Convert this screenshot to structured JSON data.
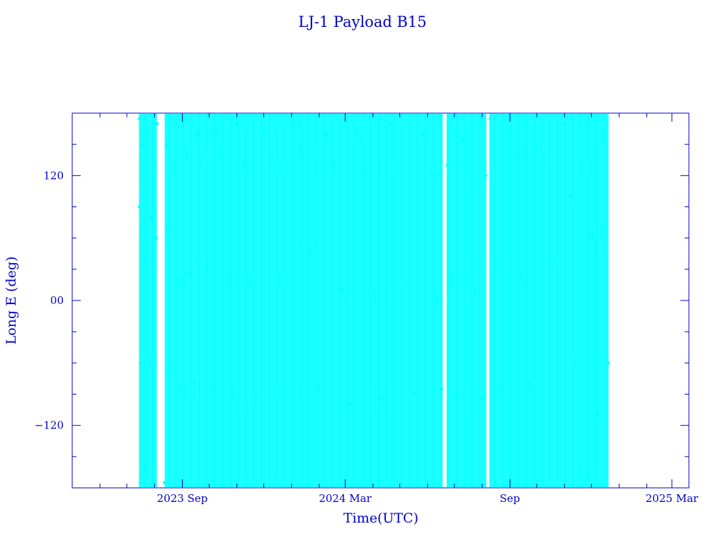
{
  "chart_data": {
    "type": "scatter",
    "title": "LJ-1 Payload B15",
    "xlabel": "Time(UTC)",
    "ylabel": "Long E (deg)",
    "colors": {
      "axes": "#0000cc",
      "series": "#00ffff"
    },
    "xlim": [
      "2023-05-01",
      "2025-03-20"
    ],
    "ylim": [
      -180,
      180
    ],
    "x_major_ticks": [
      {
        "date": "2023-09-01",
        "label": "2023 Sep"
      },
      {
        "date": "2024-03-01",
        "label": "2024 Mar"
      },
      {
        "date": "2024-09-01",
        "label": "Sep"
      },
      {
        "date": "2025-03-01",
        "label": "2025 Mar"
      }
    ],
    "x_minor_ticks": [
      "2023-06-01",
      "2023-07-01",
      "2023-08-01",
      "2023-10-01",
      "2023-11-01",
      "2023-12-01",
      "2024-01-01",
      "2024-02-01",
      "2024-04-01",
      "2024-05-01",
      "2024-06-01",
      "2024-07-01",
      "2024-08-01",
      "2024-10-01",
      "2024-11-01",
      "2024-12-01",
      "2025-01-01",
      "2025-02-01"
    ],
    "y_major_ticks": [
      {
        "value": 120,
        "label": "120"
      },
      {
        "value": 0,
        "label": "00"
      },
      {
        "value": -120,
        "label": "−120"
      }
    ],
    "y_minor_ticks": [
      -150,
      -90,
      -60,
      -30,
      30,
      60,
      90,
      150
    ],
    "data_range": [
      "2023-07-15",
      "2024-12-20"
    ],
    "gaps": [
      [
        "2023-08-04",
        "2023-08-12"
      ],
      [
        "2024-06-18",
        "2024-06-22"
      ],
      [
        "2024-08-06",
        "2024-08-09"
      ]
    ],
    "series": [
      {
        "values": [
          [
            "2023-07-15",
            175
          ],
          [
            "2023-07-15",
            90
          ],
          [
            "2023-07-16",
            -60
          ],
          [
            "2023-07-16",
            -175
          ],
          [
            "2023-07-18",
            70
          ],
          [
            "2023-07-19",
            150
          ],
          [
            "2023-07-21",
            -160
          ],
          [
            "2023-07-22",
            40
          ],
          [
            "2023-07-24",
            160
          ],
          [
            "2023-07-26",
            -60
          ],
          [
            "2023-07-28",
            80
          ],
          [
            "2023-07-30",
            -175
          ],
          [
            "2023-08-01",
            130
          ],
          [
            "2023-08-02",
            -60
          ],
          [
            "2023-08-03",
            60
          ],
          [
            "2023-08-04",
            170
          ],
          [
            "2023-08-12",
            -175
          ],
          [
            "2023-08-14",
            150
          ],
          [
            "2023-08-16",
            70
          ],
          [
            "2023-08-18",
            -65
          ],
          [
            "2023-08-20",
            175
          ],
          [
            "2023-08-23",
            130
          ],
          [
            "2023-08-26",
            20
          ],
          [
            "2023-08-29",
            -85
          ],
          [
            "2023-09-02",
            170
          ],
          [
            "2023-09-06",
            140
          ],
          [
            "2023-09-10",
            25
          ],
          [
            "2023-09-14",
            -80
          ],
          [
            "2023-09-18",
            160
          ],
          [
            "2023-09-23",
            135
          ],
          [
            "2023-09-28",
            30
          ],
          [
            "2023-10-03",
            -85
          ],
          [
            "2023-10-08",
            165
          ],
          [
            "2023-10-14",
            140
          ],
          [
            "2023-10-20",
            20
          ],
          [
            "2023-10-26",
            -90
          ],
          [
            "2023-11-01",
            170
          ],
          [
            "2023-11-08",
            130
          ],
          [
            "2023-11-15",
            15
          ],
          [
            "2023-11-22",
            -95
          ],
          [
            "2023-12-01",
            165
          ],
          [
            "2023-12-09",
            135
          ],
          [
            "2023-12-17",
            20
          ],
          [
            "2023-12-25",
            -88
          ],
          [
            "2024-01-03",
            170
          ],
          [
            "2024-01-12",
            140
          ],
          [
            "2024-01-21",
            45
          ],
          [
            "2024-01-30",
            -85
          ],
          [
            "2024-02-08",
            160
          ],
          [
            "2024-02-17",
            130
          ],
          [
            "2024-02-26",
            10
          ],
          [
            "2024-03-06",
            -100
          ],
          [
            "2024-03-15",
            165
          ],
          [
            "2024-03-24",
            125
          ],
          [
            "2024-04-02",
            5
          ],
          [
            "2024-04-11",
            -95
          ],
          [
            "2024-04-20",
            170
          ],
          [
            "2024-04-29",
            130
          ],
          [
            "2024-05-08",
            15
          ],
          [
            "2024-05-17",
            -90
          ],
          [
            "2024-05-26",
            160
          ],
          [
            "2024-06-04",
            125
          ],
          [
            "2024-06-12",
            0
          ],
          [
            "2024-06-17",
            -85
          ],
          [
            "2024-06-23",
            130
          ],
          [
            "2024-06-28",
            20
          ],
          [
            "2024-07-04",
            -90
          ],
          [
            "2024-07-10",
            155
          ],
          [
            "2024-07-17",
            135
          ],
          [
            "2024-07-24",
            10
          ],
          [
            "2024-07-31",
            -95
          ],
          [
            "2024-08-05",
            120
          ],
          [
            "2024-08-10",
            175
          ],
          [
            "2024-08-15",
            40
          ],
          [
            "2024-08-22",
            -85
          ],
          [
            "2024-08-29",
            160
          ],
          [
            "2024-09-06",
            140
          ],
          [
            "2024-09-14",
            25
          ],
          [
            "2024-09-22",
            -80
          ],
          [
            "2024-09-30",
            150
          ],
          [
            "2024-10-08",
            135
          ],
          [
            "2024-10-16",
            40
          ],
          [
            "2024-10-24",
            -85
          ],
          [
            "2024-11-01",
            170
          ],
          [
            "2024-11-08",
            100
          ],
          [
            "2024-11-14",
            -60
          ],
          [
            "2024-11-20",
            130
          ],
          [
            "2024-11-26",
            -170
          ],
          [
            "2024-12-02",
            60
          ],
          [
            "2024-12-08",
            -110
          ],
          [
            "2024-12-14",
            160
          ],
          [
            "2024-12-20",
            -60
          ]
        ]
      }
    ]
  }
}
